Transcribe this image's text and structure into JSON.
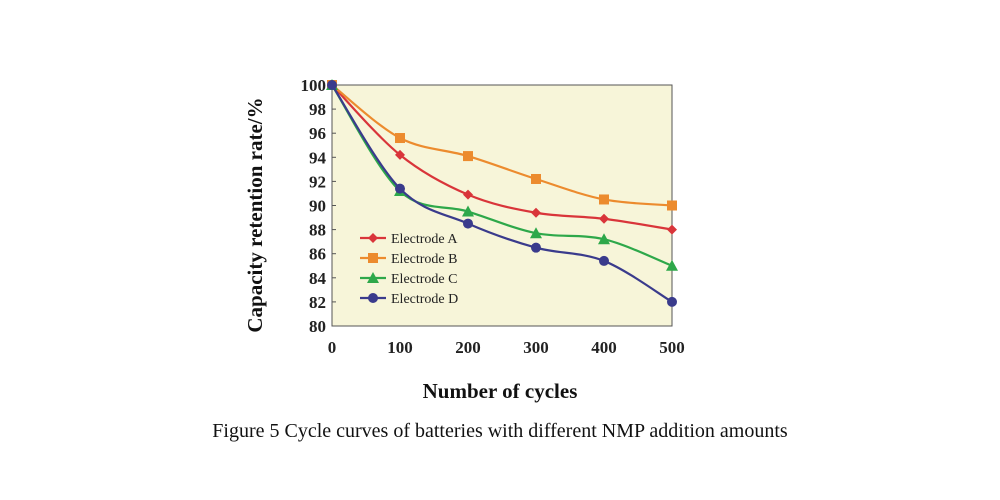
{
  "chart_data": {
    "type": "line",
    "caption": "Figure 5 Cycle curves of batteries with different NMP addition amounts",
    "xlabel": "Number of cycles",
    "ylabel": "Capacity retention rate/%",
    "x": [
      0,
      100,
      200,
      300,
      400,
      500
    ],
    "xlim": [
      0,
      500
    ],
    "ylim": [
      80,
      100
    ],
    "xticks": [
      0,
      100,
      200,
      300,
      400,
      500
    ],
    "yticks": [
      80,
      82,
      84,
      86,
      88,
      90,
      92,
      94,
      96,
      98,
      100
    ],
    "grid": false,
    "legend_position": "bottom-left",
    "plot_background": "#f7f5d9",
    "series": [
      {
        "name": "Electrode A",
        "color": "#d9353a",
        "marker": "diamond",
        "values": [
          100,
          94.2,
          90.9,
          89.4,
          88.9,
          88.0
        ]
      },
      {
        "name": "Electrode B",
        "color": "#ec8b2e",
        "marker": "square",
        "values": [
          100,
          95.6,
          94.1,
          92.2,
          90.5,
          90.0
        ]
      },
      {
        "name": "Electrode C",
        "color": "#2ea84a",
        "marker": "triangle",
        "values": [
          100,
          91.2,
          89.5,
          87.7,
          87.2,
          85.0
        ]
      },
      {
        "name": "Electrode D",
        "color": "#3a3b8c",
        "marker": "circle",
        "values": [
          100,
          91.4,
          88.5,
          86.5,
          85.4,
          82.0
        ]
      }
    ]
  }
}
